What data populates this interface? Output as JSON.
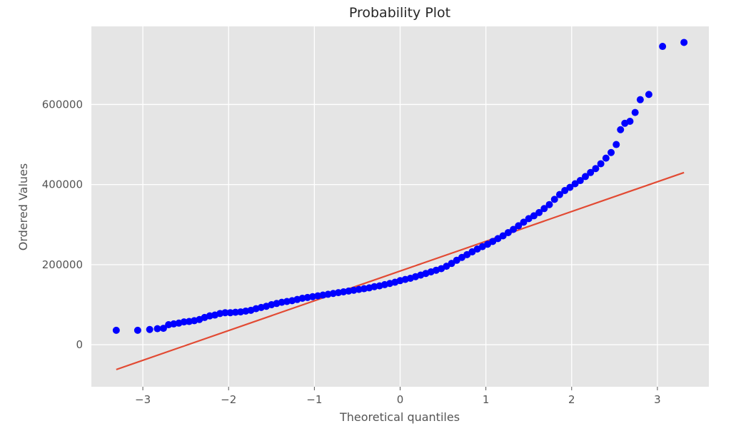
{
  "chart_data": {
    "type": "scatter",
    "title": "Probability Plot",
    "xlabel": "Theoretical quantiles",
    "ylabel": "Ordered Values",
    "xlim": [
      -3.6,
      3.6
    ],
    "ylim": [
      -105000,
      795000
    ],
    "xticks": [
      -3,
      -2,
      -1,
      0,
      1,
      2,
      3
    ],
    "xtick_labels": [
      "−3",
      "−2",
      "−1",
      "0",
      "1",
      "2",
      "3"
    ],
    "yticks": [
      0,
      200000,
      400000,
      600000
    ],
    "ytick_labels": [
      "0",
      "200000",
      "400000",
      "600000"
    ],
    "grid": true,
    "background": "#e5e5e5",
    "point_color": "#0000ff",
    "line_color": "#e24a33",
    "fit_line": {
      "x": [
        -3.31,
        3.31
      ],
      "y": [
        -62000,
        430000
      ]
    },
    "series": [
      {
        "x": [
          -3.31,
          -3.06,
          -2.92,
          -2.83,
          -2.76,
          -2.7,
          -2.64,
          -2.58,
          -2.52,
          -2.46,
          -2.4,
          -2.34,
          -2.28,
          -2.22,
          -2.16,
          -2.1,
          -2.04,
          -1.98,
          -1.92,
          -1.86,
          -1.8,
          -1.74,
          -1.68,
          -1.62,
          -1.56,
          -1.5,
          -1.44,
          -1.38,
          -1.32,
          -1.26,
          -1.2,
          -1.14,
          -1.08,
          -1.02,
          -0.96,
          -0.9,
          -0.84,
          -0.78,
          -0.72,
          -0.66,
          -0.6,
          -0.54,
          -0.48,
          -0.42,
          -0.36,
          -0.3,
          -0.24,
          -0.18,
          -0.12,
          -0.06,
          0.0,
          0.06,
          0.12,
          0.18,
          0.24,
          0.3,
          0.36,
          0.42,
          0.48,
          0.54,
          0.6,
          0.66,
          0.72,
          0.78,
          0.84,
          0.9,
          0.96,
          1.02,
          1.08,
          1.14,
          1.2,
          1.26,
          1.32,
          1.38,
          1.44,
          1.5,
          1.56,
          1.62,
          1.68,
          1.74,
          1.8,
          1.86,
          1.92,
          1.98,
          2.04,
          2.1,
          2.16,
          2.22,
          2.28,
          2.34,
          2.4,
          2.46,
          2.52,
          2.57,
          2.62,
          2.68,
          2.74,
          2.8,
          2.9,
          3.06,
          3.31
        ],
        "y": [
          36000,
          36000,
          38000,
          40000,
          41000,
          50000,
          52000,
          54000,
          57000,
          58000,
          60000,
          63000,
          68000,
          72000,
          74000,
          78000,
          80000,
          80000,
          81000,
          82000,
          84000,
          86000,
          90000,
          93000,
          96000,
          100000,
          103000,
          106000,
          108000,
          110000,
          113000,
          116000,
          118000,
          120000,
          122000,
          124000,
          126000,
          128000,
          130000,
          132000,
          134000,
          136000,
          138000,
          140000,
          142000,
          145000,
          147000,
          150000,
          153000,
          156000,
          160000,
          163000,
          166000,
          170000,
          174000,
          178000,
          182000,
          186000,
          190000,
          196000,
          203000,
          211000,
          218000,
          225000,
          232000,
          239000,
          245000,
          251000,
          258000,
          265000,
          272000,
          280000,
          288000,
          297000,
          306000,
          315000,
          322000,
          330000,
          340000,
          350000,
          363000,
          375000,
          385000,
          393000,
          402000,
          410000,
          420000,
          430000,
          440000,
          452000,
          466000,
          480000,
          500000,
          537000,
          553000,
          558000,
          580000,
          612000,
          625000,
          745000,
          755000
        ]
      }
    ]
  }
}
